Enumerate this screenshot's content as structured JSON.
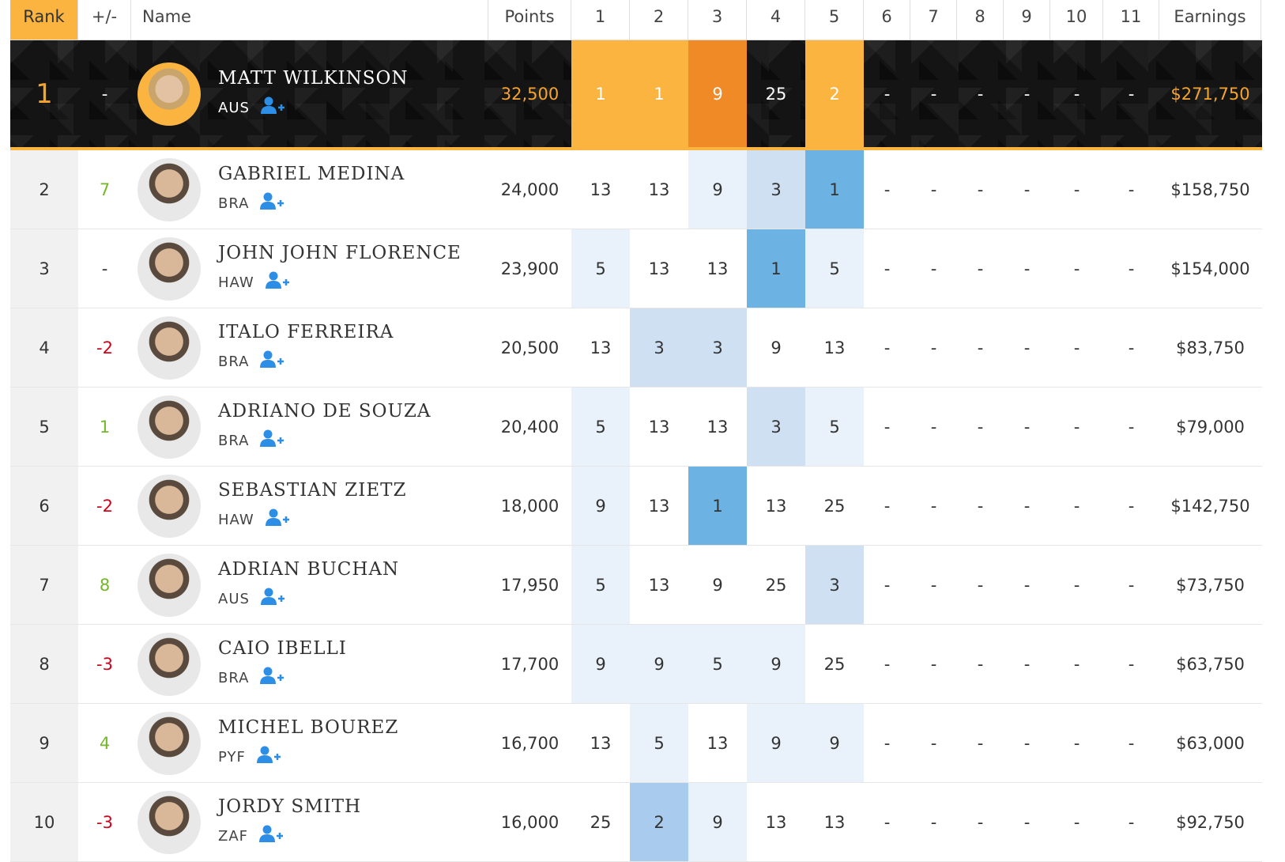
{
  "table": {
    "columns": [
      "Rank",
      "+/-",
      "Name",
      "Points",
      "1",
      "2",
      "3",
      "4",
      "5",
      "6",
      "7",
      "8",
      "9",
      "10",
      "11",
      "Earnings"
    ],
    "rows": [
      {
        "rank": "1",
        "change": "-",
        "name": "MATT WILKINSON",
        "country": "AUS",
        "points": "32,500",
        "events": [
          "1",
          "1",
          "9",
          "25",
          "2",
          "-",
          "-",
          "-",
          "-",
          "-",
          "-"
        ],
        "earnings": "$271,750"
      },
      {
        "rank": "2",
        "change": "7",
        "name": "GABRIEL MEDINA",
        "country": "BRA",
        "points": "24,000",
        "events": [
          "13",
          "13",
          "9",
          "3",
          "1",
          "-",
          "-",
          "-",
          "-",
          "-",
          "-"
        ],
        "earnings": "$158,750"
      },
      {
        "rank": "3",
        "change": "-",
        "name": "JOHN JOHN FLORENCE",
        "country": "HAW",
        "points": "23,900",
        "events": [
          "5",
          "13",
          "13",
          "1",
          "5",
          "-",
          "-",
          "-",
          "-",
          "-",
          "-"
        ],
        "earnings": "$154,000"
      },
      {
        "rank": "4",
        "change": "-2",
        "name": "ITALO FERREIRA",
        "country": "BRA",
        "points": "20,500",
        "events": [
          "13",
          "3",
          "3",
          "9",
          "13",
          "-",
          "-",
          "-",
          "-",
          "-",
          "-"
        ],
        "earnings": "$83,750"
      },
      {
        "rank": "5",
        "change": "1",
        "name": "ADRIANO DE SOUZA",
        "country": "BRA",
        "points": "20,400",
        "events": [
          "5",
          "13",
          "13",
          "3",
          "5",
          "-",
          "-",
          "-",
          "-",
          "-",
          "-"
        ],
        "earnings": "$79,000"
      },
      {
        "rank": "6",
        "change": "-2",
        "name": "SEBASTIAN ZIETZ",
        "country": "HAW",
        "points": "18,000",
        "events": [
          "9",
          "13",
          "1",
          "13",
          "25",
          "-",
          "-",
          "-",
          "-",
          "-",
          "-"
        ],
        "earnings": "$142,750"
      },
      {
        "rank": "7",
        "change": "8",
        "name": "ADRIAN BUCHAN",
        "country": "AUS",
        "points": "17,950",
        "events": [
          "5",
          "13",
          "9",
          "25",
          "3",
          "-",
          "-",
          "-",
          "-",
          "-",
          "-"
        ],
        "earnings": "$73,750"
      },
      {
        "rank": "8",
        "change": "-3",
        "name": "CAIO IBELLI",
        "country": "BRA",
        "points": "17,700",
        "events": [
          "9",
          "9",
          "5",
          "9",
          "25",
          "-",
          "-",
          "-",
          "-",
          "-",
          "-"
        ],
        "earnings": "$63,750"
      },
      {
        "rank": "9",
        "change": "4",
        "name": "MICHEL BOUREZ",
        "country": "PYF",
        "points": "16,700",
        "events": [
          "13",
          "5",
          "13",
          "9",
          "9",
          "-",
          "-",
          "-",
          "-",
          "-",
          "-"
        ],
        "earnings": "$63,000"
      },
      {
        "rank": "10",
        "change": "-3",
        "name": "JORDY SMITH",
        "country": "ZAF",
        "points": "16,000",
        "events": [
          "25",
          "2",
          "9",
          "13",
          "13",
          "-",
          "-",
          "-",
          "-",
          "-",
          "-"
        ],
        "earnings": "$92,750"
      }
    ]
  }
}
